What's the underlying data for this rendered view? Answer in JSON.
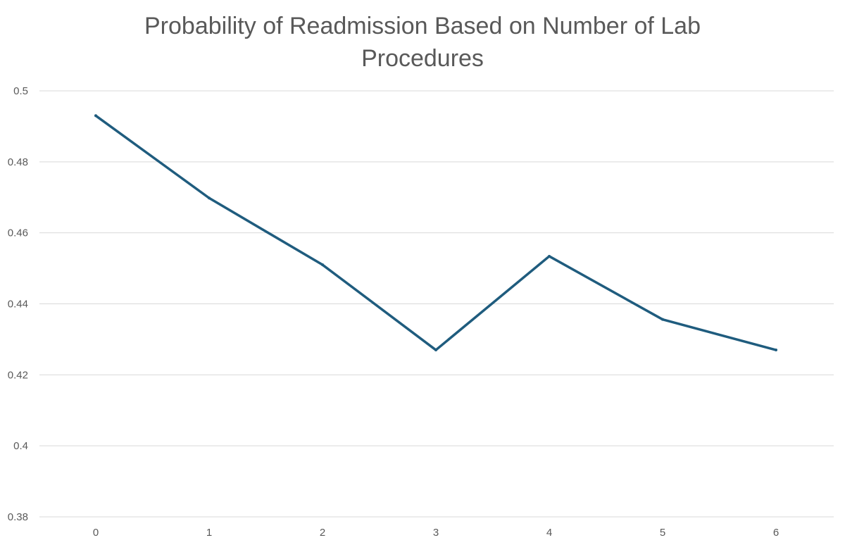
{
  "chart_data": {
    "type": "line",
    "title_lines": [
      "Probability of Readmission Based on Number of Lab",
      "Procedures"
    ],
    "title": "Probability of Readmission Based on Number of Lab Procedures",
    "xlabel": "",
    "ylabel": "",
    "categories": [
      "0",
      "1",
      "2",
      "3",
      "4",
      "5",
      "6"
    ],
    "series": [
      {
        "values": [
          0.493,
          0.4698,
          0.451,
          0.427,
          0.4534,
          0.4356,
          0.427
        ]
      }
    ],
    "ylim": [
      0.38,
      0.5
    ],
    "y_ticks": [
      "0.38",
      "0.4",
      "0.42",
      "0.44",
      "0.46",
      "0.48",
      "0.5"
    ],
    "grid": true,
    "legend": "none",
    "colors": {
      "line": "#1F5C7E",
      "grid": "#D9D9D9",
      "text": "#595959"
    }
  }
}
